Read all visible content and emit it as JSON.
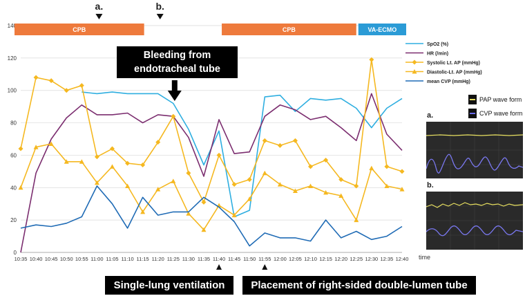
{
  "chart_data": {
    "type": "line",
    "x": [
      "10:35",
      "10:40",
      "10:45",
      "10:50",
      "10:55",
      "11:00",
      "11:05",
      "11:10",
      "11:15",
      "11:20",
      "11:25",
      "11:30",
      "11:35",
      "11:40",
      "11:45",
      "11:50",
      "11:55",
      "12:00",
      "12:05",
      "12:10",
      "12:15",
      "12:20",
      "12:25",
      "12:30",
      "12:35",
      "12:40"
    ],
    "ylim": [
      0,
      140
    ],
    "yticks": [
      0,
      20,
      40,
      60,
      80,
      100,
      120,
      140
    ],
    "xlabel": "time",
    "series": [
      {
        "name": "SpO2 (%)",
        "color": "#2eaee0",
        "marker": "none",
        "values": [
          null,
          null,
          null,
          null,
          99,
          98,
          99,
          98,
          98,
          98,
          92,
          76,
          54,
          75,
          22,
          26,
          96,
          97,
          87,
          95,
          94,
          95,
          89,
          77,
          89,
          95
        ]
      },
      {
        "name": "HR (/min)",
        "color": "#7b2d6f",
        "marker": "none",
        "values": [
          0,
          49,
          70,
          83,
          91,
          85,
          85,
          86,
          80,
          85,
          84,
          71,
          47,
          82,
          61,
          62,
          84,
          91,
          88,
          82,
          84,
          77,
          69,
          98,
          73,
          63
        ]
      },
      {
        "name": "Systolic Lt. AP (mmHg)",
        "color": "#f5b820",
        "marker": "diamond",
        "values": [
          64,
          108,
          106,
          100,
          103,
          59,
          64,
          55,
          54,
          68,
          84,
          49,
          31,
          60,
          42,
          45,
          69,
          66,
          69,
          53,
          57,
          45,
          41,
          119,
          53,
          50
        ]
      },
      {
        "name": "Diastolic-Lt. AP (mmHg)",
        "color": "#f5b820",
        "marker": "triangle",
        "values": [
          40,
          65,
          67,
          56,
          56,
          43,
          53,
          41,
          25,
          39,
          44,
          24,
          14,
          29,
          23,
          33,
          49,
          42,
          38,
          41,
          37,
          35,
          20,
          52,
          41,
          39
        ]
      },
      {
        "name": "mean CVP (mmHg)",
        "color": "#1f6bb5",
        "marker": "none",
        "values": [
          15,
          17,
          16,
          18,
          22,
          41,
          30,
          15,
          34,
          23,
          25,
          25,
          34,
          28,
          19,
          4,
          12,
          9,
          9,
          7,
          20,
          9,
          13,
          8,
          10,
          16
        ]
      }
    ],
    "phases": [
      {
        "label": "CPB",
        "start": "10:35",
        "end": "11:15",
        "color": "#ee7a3c"
      },
      {
        "label": "CPB",
        "start": "11:40",
        "end": "12:25",
        "color": "#ee7a3c"
      },
      {
        "label": "VA-ECMO",
        "start": "12:25",
        "end": "12:40",
        "color": "#2b9bd6"
      }
    ],
    "markers": [
      {
        "label": "a.",
        "at": "11:00"
      },
      {
        "label": "b.",
        "at": "11:20"
      }
    ],
    "annotations": [
      {
        "text_lines": [
          "Bleeding from",
          "endotracheal tube"
        ],
        "at": "11:25"
      },
      {
        "text": "Single-lung ventilation",
        "at": "11:40"
      },
      {
        "text": "Placement of right-sided double-lumen tube",
        "at": "11:55"
      }
    ],
    "legend_position": "top-right"
  },
  "waveforms": {
    "legend": [
      {
        "label": "PAP wave form",
        "color": "#e8e060"
      },
      {
        "label": "CVP wave form",
        "color": "#6a6cf0"
      }
    ],
    "panels": [
      {
        "label": "a."
      },
      {
        "label": "b."
      }
    ]
  }
}
